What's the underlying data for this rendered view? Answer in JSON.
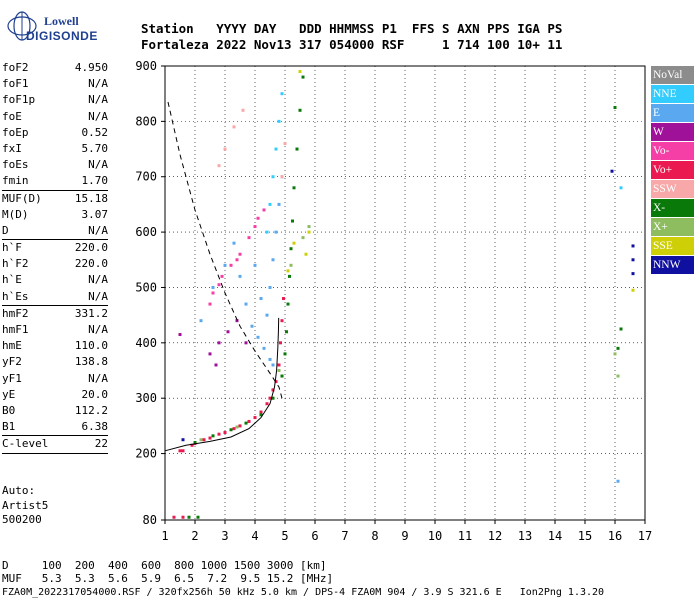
{
  "logo": {
    "line1": "Lowell",
    "line2": "DIGISONDE"
  },
  "header": {
    "line1": "Station   YYYY DAY   DDD HHMMSS P1  FFS S AXN PPS IGA PS",
    "line2": "Fortaleza 2022 Nov13 317 054000 RSF     1 714 100 10+ 11"
  },
  "params": [
    [
      {
        "k": "foF2",
        "v": "4.950"
      },
      {
        "k": "foF1",
        "v": "N/A"
      },
      {
        "k": "foF1p",
        "v": "N/A"
      },
      {
        "k": "foE",
        "v": "N/A"
      },
      {
        "k": "foEp",
        "v": "0.52"
      },
      {
        "k": "fxI",
        "v": "5.70"
      },
      {
        "k": "foEs",
        "v": "N/A"
      },
      {
        "k": "fmin",
        "v": "1.70"
      }
    ],
    [
      {
        "k": "MUF(D)",
        "v": "15.18"
      },
      {
        "k": "M(D)",
        "v": "3.07"
      },
      {
        "k": "D",
        "v": "N/A"
      }
    ],
    [
      {
        "k": "h`F",
        "v": "220.0"
      },
      {
        "k": "h`F2",
        "v": "220.0"
      },
      {
        "k": "h`E",
        "v": "N/A"
      },
      {
        "k": "h`Es",
        "v": "N/A"
      }
    ],
    [
      {
        "k": "hmF2",
        "v": "331.2"
      },
      {
        "k": "hmF1",
        "v": "N/A"
      },
      {
        "k": "hmE",
        "v": "110.0"
      },
      {
        "k": "yF2",
        "v": "138.8"
      },
      {
        "k": "yF1",
        "v": "N/A"
      },
      {
        "k": "yE",
        "v": "20.0"
      },
      {
        "k": "B0",
        "v": "112.2"
      },
      {
        "k": "B1",
        "v": "6.38"
      }
    ],
    [
      {
        "k": "C-level",
        "v": "22"
      }
    ]
  ],
  "auto": {
    "line1": "Auto:",
    "line2": "Artist5",
    "line3": "500200"
  },
  "bottom": {
    "d_line": "D     100  200  400  600  800 1000 1500 3000 [km]",
    "muf_line": "MUF   5.3  5.3  5.6  5.9  6.5  7.2  9.5 15.2 [MHz]",
    "footer": "FZA0M_2022317054000.RSF / 320fx256h 50 kHz 5.0 km / DPS-4 FZA0M 904 / 3.9 S 321.6 E   Ion2Png 1.3.20"
  },
  "legend": [
    {
      "label": "NoVal",
      "color": "#8c8c8c"
    },
    {
      "label": "NNE",
      "color": "#33ccff"
    },
    {
      "label": "E",
      "color": "#5aa8f0"
    },
    {
      "label": "W",
      "color": "#a0119a"
    },
    {
      "label": "Vo-",
      "color": "#f53fa6"
    },
    {
      "label": "Vo+",
      "color": "#ea1a50"
    },
    {
      "label": "SSW",
      "color": "#f8a8a8"
    },
    {
      "label": "X-",
      "color": "#097a09"
    },
    {
      "label": "X+",
      "color": "#8dbd5f"
    },
    {
      "label": "SSE",
      "color": "#cfcf08"
    },
    {
      "label": "NNW",
      "color": "#1010a0"
    }
  ],
  "chart_data": {
    "type": "scatter",
    "title": "",
    "xlabel": "",
    "ylabel": "",
    "xlim": [
      1,
      17
    ],
    "ylim": [
      80,
      900
    ],
    "x_ticks": [
      1,
      2,
      3,
      4,
      5,
      6,
      7,
      8,
      9,
      10,
      11,
      12,
      13,
      14,
      15,
      16,
      17
    ],
    "y_ticks": [
      80,
      200,
      300,
      400,
      500,
      600,
      700,
      800,
      900
    ],
    "grid": true,
    "series": [
      {
        "name": "Vo+",
        "color": "#ea1a50",
        "points": [
          [
            1.6,
            205
          ],
          [
            1.9,
            215
          ],
          [
            2.3,
            225
          ],
          [
            2.8,
            235
          ],
          [
            3.3,
            245
          ],
          [
            3.8,
            258
          ],
          [
            4.2,
            275
          ],
          [
            4.5,
            300
          ],
          [
            4.7,
            330
          ],
          [
            4.8,
            360
          ],
          [
            4.85,
            400
          ],
          [
            4.9,
            440
          ],
          [
            4.95,
            480
          ],
          [
            1.5,
            205
          ],
          [
            2.0,
            218
          ],
          [
            2.5,
            228
          ],
          [
            3.0,
            238
          ],
          [
            3.5,
            250
          ],
          [
            4.0,
            265
          ],
          [
            4.4,
            290
          ],
          [
            4.6,
            315
          ],
          [
            1.3,
            85
          ],
          [
            1.6,
            85
          ]
        ]
      },
      {
        "name": "Vo-",
        "color": "#f53fa6",
        "points": [
          [
            2.6,
            490
          ],
          [
            2.9,
            520
          ],
          [
            3.2,
            540
          ],
          [
            3.5,
            560
          ],
          [
            3.8,
            590
          ],
          [
            4.0,
            610
          ],
          [
            4.3,
            640
          ],
          [
            2.8,
            505
          ],
          [
            3.4,
            550
          ],
          [
            4.1,
            625
          ],
          [
            2.5,
            470
          ]
        ]
      },
      {
        "name": "X-",
        "color": "#097a09",
        "points": [
          [
            2.0,
            220
          ],
          [
            2.6,
            232
          ],
          [
            3.2,
            243
          ],
          [
            3.7,
            255
          ],
          [
            4.2,
            270
          ],
          [
            4.6,
            300
          ],
          [
            4.9,
            340
          ],
          [
            5.0,
            380
          ],
          [
            5.05,
            420
          ],
          [
            5.1,
            470
          ],
          [
            5.15,
            520
          ],
          [
            5.2,
            570
          ],
          [
            5.25,
            620
          ],
          [
            5.3,
            680
          ],
          [
            5.4,
            750
          ],
          [
            5.5,
            820
          ],
          [
            5.6,
            880
          ],
          [
            1.8,
            85
          ],
          [
            2.1,
            85
          ],
          [
            16.0,
            825
          ],
          [
            16.2,
            425
          ],
          [
            16.1,
            390
          ]
        ]
      },
      {
        "name": "X+",
        "color": "#8dbd5f",
        "points": [
          [
            2.2,
            225
          ],
          [
            3.4,
            248
          ],
          [
            4.8,
            350
          ],
          [
            5.2,
            540
          ],
          [
            5.6,
            590
          ],
          [
            5.8,
            610
          ],
          [
            16.0,
            380
          ],
          [
            16.1,
            340
          ]
        ]
      },
      {
        "name": "E",
        "color": "#5aa8f0",
        "points": [
          [
            3.3,
            580
          ],
          [
            3.5,
            520
          ],
          [
            3.7,
            470
          ],
          [
            3.9,
            430
          ],
          [
            4.1,
            410
          ],
          [
            4.3,
            390
          ],
          [
            4.5,
            370
          ],
          [
            4.6,
            360
          ],
          [
            4.4,
            450
          ],
          [
            4.5,
            500
          ],
          [
            4.6,
            550
          ],
          [
            4.7,
            600
          ],
          [
            4.8,
            650
          ],
          [
            4.9,
            700
          ],
          [
            2.2,
            440
          ],
          [
            2.6,
            500
          ],
          [
            3.0,
            540
          ],
          [
            4.2,
            480
          ],
          [
            4.0,
            540
          ],
          [
            16.1,
            150
          ]
        ]
      },
      {
        "name": "NNE",
        "color": "#33ccff",
        "points": [
          [
            4.4,
            600
          ],
          [
            4.5,
            650
          ],
          [
            4.6,
            700
          ],
          [
            4.7,
            750
          ],
          [
            4.8,
            800
          ],
          [
            4.9,
            850
          ],
          [
            16.2,
            680
          ]
        ]
      },
      {
        "name": "W",
        "color": "#a0119a",
        "points": [
          [
            2.5,
            380
          ],
          [
            2.8,
            400
          ],
          [
            3.1,
            420
          ],
          [
            3.4,
            440
          ],
          [
            3.7,
            400
          ],
          [
            2.7,
            360
          ],
          [
            1.5,
            415
          ]
        ]
      },
      {
        "name": "SSW",
        "color": "#f8a8a8",
        "points": [
          [
            3.0,
            750
          ],
          [
            3.3,
            790
          ],
          [
            3.6,
            820
          ],
          [
            4.9,
            700
          ],
          [
            5.0,
            760
          ],
          [
            2.8,
            720
          ]
        ]
      },
      {
        "name": "SSE",
        "color": "#cfcf08",
        "points": [
          [
            5.1,
            530
          ],
          [
            5.3,
            580
          ],
          [
            5.7,
            560
          ],
          [
            5.8,
            600
          ],
          [
            5.5,
            890
          ],
          [
            16.6,
            495
          ]
        ]
      },
      {
        "name": "NNW",
        "color": "#1010a0",
        "points": [
          [
            1.6,
            225
          ],
          [
            15.9,
            710
          ],
          [
            16.6,
            575
          ],
          [
            16.6,
            550
          ],
          [
            16.6,
            525
          ]
        ]
      }
    ],
    "curves": [
      {
        "style": "dashed",
        "points": [
          [
            1.1,
            835
          ],
          [
            1.5,
            740
          ],
          [
            2.0,
            640
          ],
          [
            2.5,
            560
          ],
          [
            3.0,
            490
          ],
          [
            3.5,
            430
          ],
          [
            4.0,
            385
          ],
          [
            4.5,
            345
          ],
          [
            4.8,
            320
          ],
          [
            4.9,
            300
          ]
        ]
      },
      {
        "style": "solid",
        "points": [
          [
            1.0,
            205
          ],
          [
            1.7,
            215
          ],
          [
            2.5,
            222
          ],
          [
            3.2,
            230
          ],
          [
            3.8,
            245
          ],
          [
            4.2,
            265
          ],
          [
            4.5,
            290
          ],
          [
            4.65,
            320
          ],
          [
            4.72,
            350
          ],
          [
            4.76,
            390
          ],
          [
            4.78,
            420
          ],
          [
            4.79,
            445
          ]
        ]
      }
    ]
  }
}
